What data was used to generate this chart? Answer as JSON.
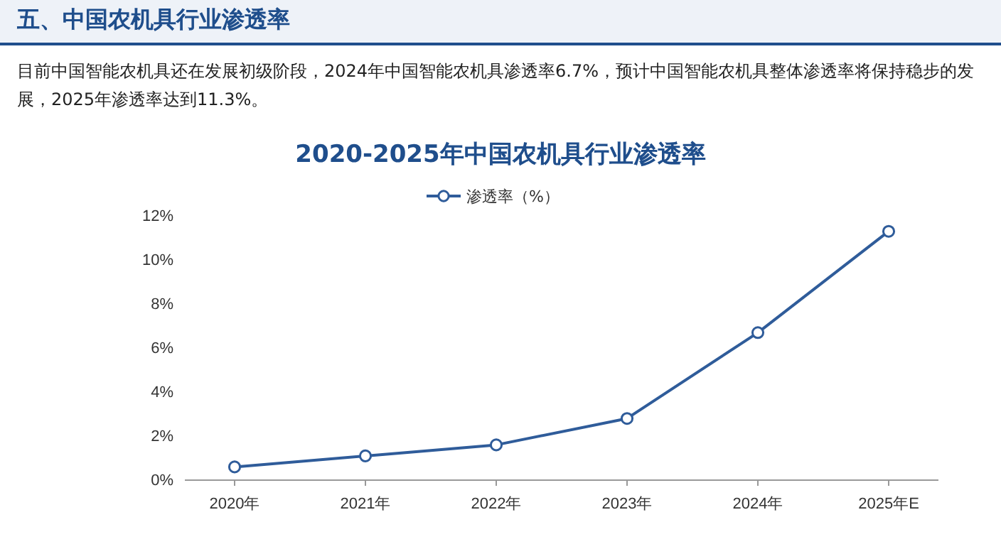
{
  "chart_data": {
    "type": "line",
    "title": "2020-2025年中国农机具行业渗透率",
    "subtitle": "目前中国智能农机具还在发展初级阶段，2024年中国智能农机具渗透率6.7%，预计中国智能农机具整体渗透率将保持稳步的发展，2025年渗透率达到11.3%。",
    "annotations": [
      "五、中国农机具行业渗透率"
    ],
    "categories": [
      "2020年",
      "2021年",
      "2022年",
      "2023年",
      "2024年",
      "2025年E"
    ],
    "series": [
      {
        "name": "渗透率（%）",
        "color": "#2f5c9a",
        "values": [
          0.6,
          1.1,
          1.6,
          2.8,
          6.7,
          11.3
        ]
      }
    ],
    "ylim": [
      0,
      12
    ],
    "yticks": [
      {
        "value": 0,
        "label": "0%"
      },
      {
        "value": 2,
        "label": "2%"
      },
      {
        "value": 4,
        "label": "4%"
      },
      {
        "value": 6,
        "label": "6%"
      },
      {
        "value": 8,
        "label": "8%"
      },
      {
        "value": 10,
        "label": "10%"
      },
      {
        "value": 12,
        "label": "12%"
      }
    ],
    "legend": "top",
    "marker": "circle",
    "line_style": "solid",
    "grid": false
  }
}
